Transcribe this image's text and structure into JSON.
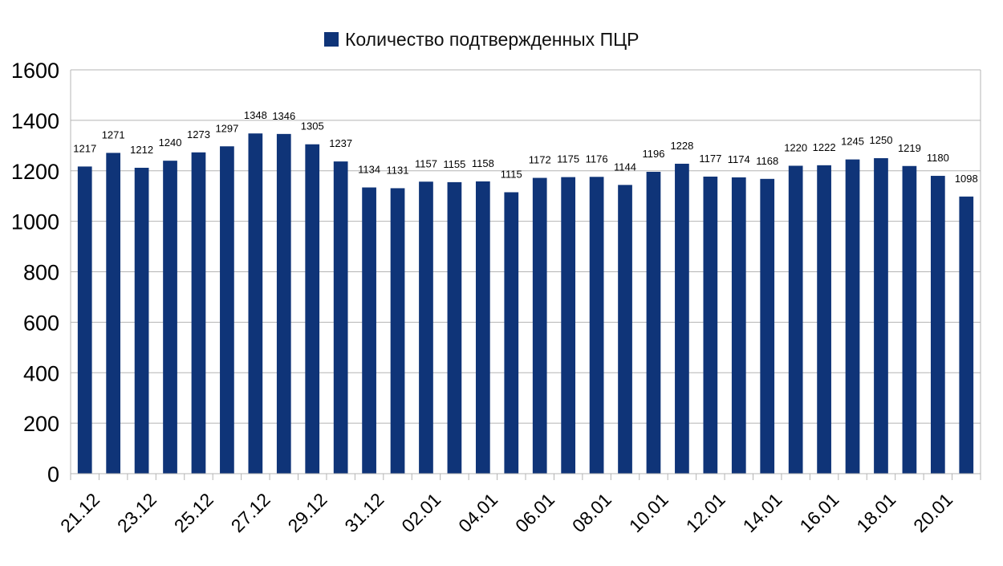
{
  "chart_data": {
    "type": "bar",
    "categories": [
      "21.12",
      "",
      "23.12",
      "",
      "25.12",
      "",
      "27.12",
      "",
      "29.12",
      "",
      "31.12",
      "",
      "02.01",
      "",
      "04.01",
      "",
      "06.01",
      "",
      "08.01",
      "",
      "10.01",
      "",
      "12.01",
      "",
      "14.01",
      "",
      "16.01",
      "",
      "18.01",
      "",
      "20.01",
      ""
    ],
    "series": [
      {
        "name": "Количество подтвержденных ПЦР",
        "values": [
          1217,
          1271,
          1212,
          1240,
          1273,
          1297,
          1348,
          1346,
          1305,
          1237,
          1134,
          1131,
          1157,
          1155,
          1158,
          1115,
          1172,
          1175,
          1176,
          1144,
          1196,
          1228,
          1177,
          1174,
          1168,
          1220,
          1222,
          1245,
          1250,
          1219,
          1180,
          1098
        ]
      }
    ],
    "yticks": [
      0,
      200,
      400,
      600,
      800,
      1000,
      1200,
      1400,
      1600
    ],
    "ylim": [
      0,
      1600
    ],
    "grid": true,
    "legend_position": "top-center",
    "bar_color": "#0f3478",
    "grid_color": "#b4b4b4"
  }
}
